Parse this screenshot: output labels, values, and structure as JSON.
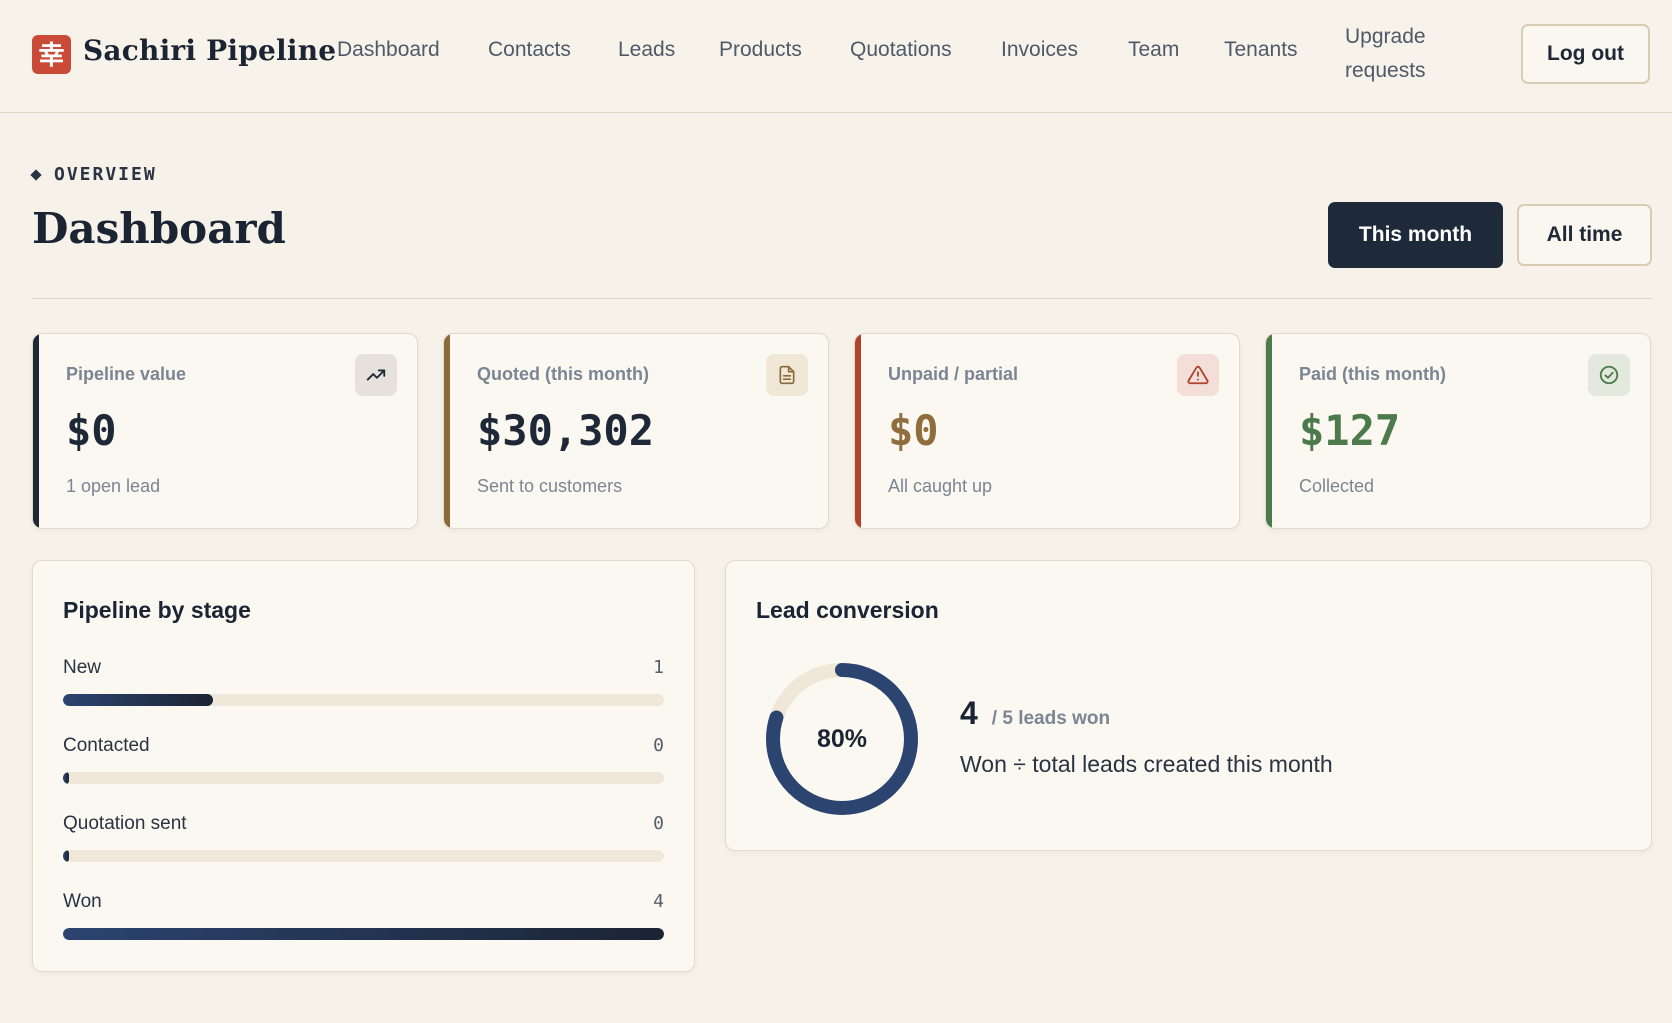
{
  "header": {
    "logo_glyph": "幸",
    "brand": "Sachiri Pipeline",
    "nav": [
      {
        "label": "Dashboard"
      },
      {
        "label": "Contacts"
      },
      {
        "label": "Leads"
      },
      {
        "label": "Products"
      },
      {
        "label": "Quotations"
      },
      {
        "label": "Invoices"
      },
      {
        "label": "Team"
      },
      {
        "label": "Tenants"
      }
    ],
    "nav_upgrade": "Upgrade requests",
    "logout_label": "Log out"
  },
  "page": {
    "eyebrow": "OVERVIEW",
    "title": "Dashboard",
    "range_buttons": {
      "this_month": "This month",
      "all_time": "All time"
    },
    "active_range": "This month"
  },
  "kpis": [
    {
      "label": "Pipeline value",
      "value": "$0",
      "sub": "1 open lead",
      "icon": "trending-up-icon",
      "accent": "#1e2836",
      "value_color": "#1e2836",
      "icon_bg": "#e6e2db",
      "icon_color": "#1e2836"
    },
    {
      "label": "Quoted (this month)",
      "value": "$30,302",
      "sub": "Sent to customers",
      "icon": "document-icon",
      "accent": "#8a6a3a",
      "value_color": "#1e2836",
      "icon_bg": "#f0e7d6",
      "icon_color": "#8a6a3a"
    },
    {
      "label": "Unpaid / partial",
      "value": "$0",
      "sub": "All caught up",
      "icon": "alert-triangle-icon",
      "accent": "#b0412e",
      "value_color": "#8f6d3c",
      "icon_bg": "#f3dfd7",
      "icon_color": "#b0412e"
    },
    {
      "label": "Paid (this month)",
      "value": "$127",
      "sub": "Collected",
      "icon": "check-circle-icon",
      "accent": "#4d7a4a",
      "value_color": "#4d7a4a",
      "icon_bg": "#e3e9dc",
      "icon_color": "#4d7a4a"
    }
  ],
  "pipeline": {
    "title": "Pipeline by stage",
    "stages": [
      {
        "label": "New",
        "count": "1",
        "value": 1
      },
      {
        "label": "Contacted",
        "count": "0",
        "value": 0
      },
      {
        "label": "Quotation sent",
        "count": "0",
        "value": 0
      },
      {
        "label": "Won",
        "count": "4",
        "value": 4
      }
    ],
    "max": 4
  },
  "conversion": {
    "title": "Lead conversion",
    "percent_label": "80%",
    "percent": 80,
    "won": "4",
    "total_text": "/ 5 leads won",
    "description": "Won ÷ total leads created this month",
    "ring_color": "#2b4470",
    "track_color": "#efe7d7"
  }
}
